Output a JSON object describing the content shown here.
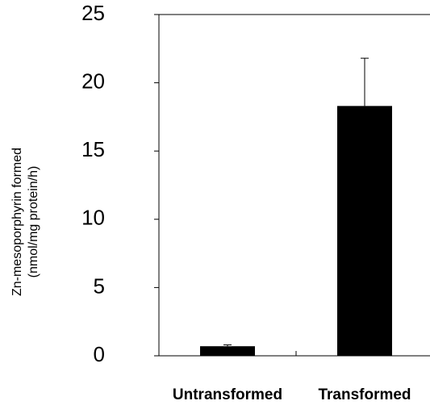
{
  "chart_data": {
    "type": "bar",
    "ylabel": [
      "Zn-mesoporphyrin formed",
      "(nmol/mg protein/h)"
    ],
    "categories": [
      "Untransformed",
      "Transformed"
    ],
    "values": [
      0.7,
      18.3
    ],
    "errors": [
      0.1,
      3.5
    ],
    "color": "#000000",
    "ylim": [
      0,
      25
    ],
    "yticks": [
      0,
      5,
      10,
      15,
      20,
      25
    ],
    "grid": false
  }
}
